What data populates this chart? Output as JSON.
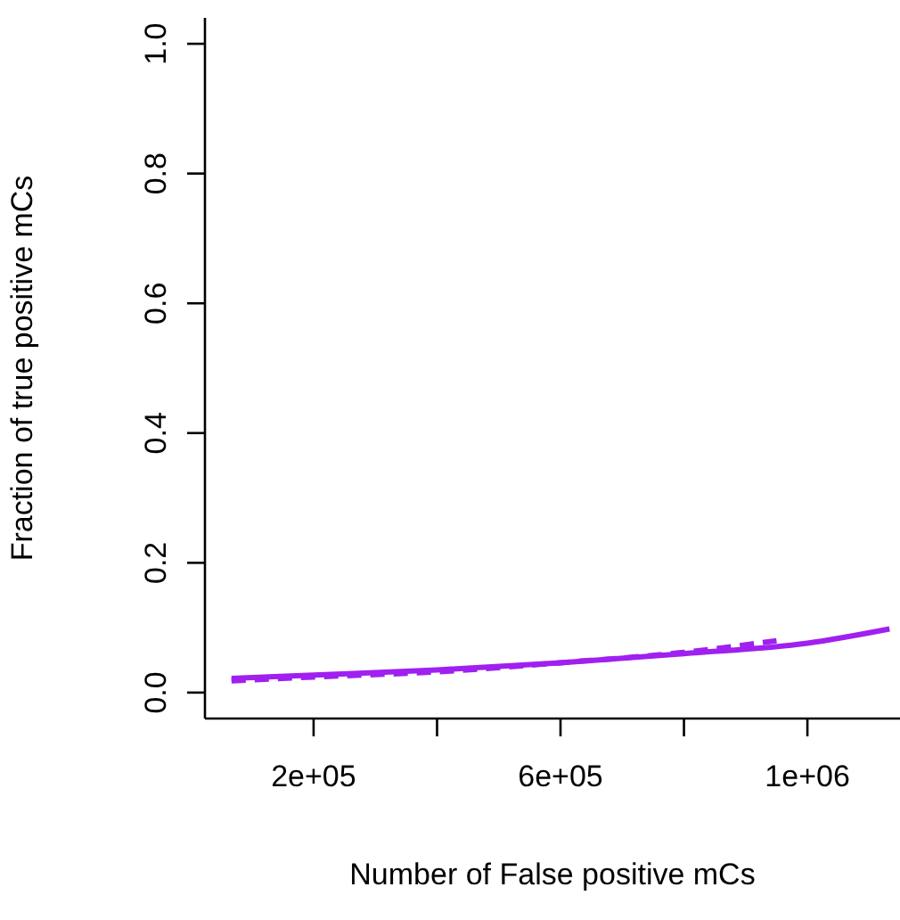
{
  "chart_data": {
    "type": "line",
    "xlabel": "Number of False positive mCs",
    "ylabel": "Fraction of true positive mCs",
    "xlim": [
      24000,
      1150000
    ],
    "xticks": [
      {
        "value": 200000,
        "label": "2e+05"
      },
      {
        "value": 400000,
        "label": null
      },
      {
        "value": 600000,
        "label": "6e+05"
      },
      {
        "value": 800000,
        "label": null
      },
      {
        "value": 1000000,
        "label": "1e+06"
      }
    ],
    "ylim": [
      -0.04,
      1.04
    ],
    "yticks": [
      {
        "value": 0,
        "label": "0.0"
      },
      {
        "value": 0.2,
        "label": "0.2"
      },
      {
        "value": 0.4,
        "label": "0.4"
      },
      {
        "value": 0.6,
        "label": "0.6"
      },
      {
        "value": 0.8,
        "label": "0.8"
      },
      {
        "value": 1,
        "label": "1.0"
      }
    ],
    "grid": false,
    "marker": "none",
    "series": [
      {
        "color": "#a020f0",
        "line_style": "solid",
        "x": [
          67000,
          200000,
          400000,
          600000,
          800000,
          1000000,
          1133000
        ],
        "values": [
          0.022,
          0.027,
          0.035,
          0.046,
          0.06,
          0.076,
          0.098
        ]
      },
      {
        "color": "#a020f0",
        "line_style": "dashed",
        "x": [
          67000,
          200000,
          400000,
          600000,
          800000,
          950000
        ],
        "values": [
          0.018,
          0.024,
          0.032,
          0.046,
          0.062,
          0.08
        ]
      }
    ]
  }
}
